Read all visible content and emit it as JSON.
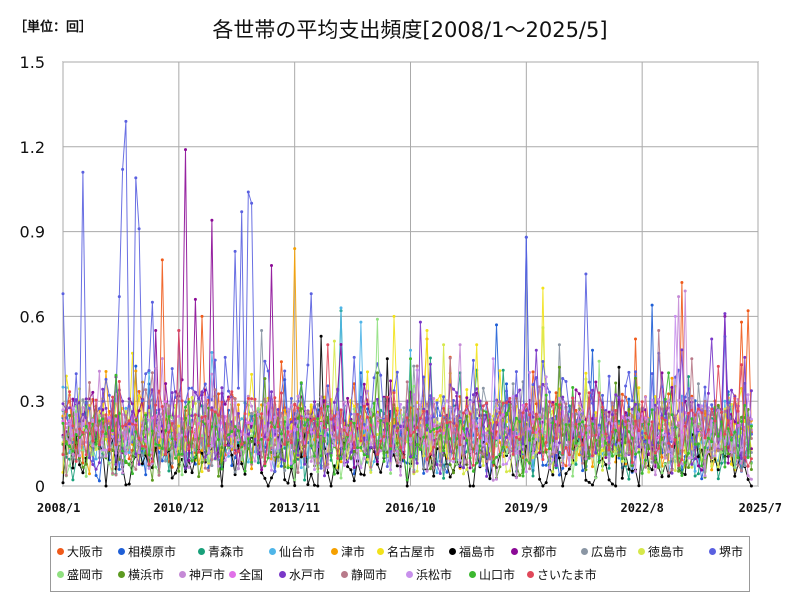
{
  "unit_label": "［単位：回］",
  "chart_data": {
    "type": "line",
    "title": "各世帯の平均支出頻度[2008/1～2025/5]",
    "xlabel": "",
    "ylabel": "回",
    "ylim": [
      0,
      1.5
    ],
    "yticks": [
      0,
      0.3,
      0.6,
      0.9,
      1.2,
      1.5
    ],
    "ytick_labels": [
      "0",
      "0.3",
      "0.6",
      "0.9",
      "1.2",
      "1.5"
    ],
    "x_start": "2008/1",
    "x_end": "2025/7",
    "xticks": [
      "2008/1",
      "2010/12",
      "2013/11",
      "2016/10",
      "2019/9",
      "2022/8",
      "2025/7"
    ],
    "grid": true,
    "legend_position": "bottom",
    "series": [
      {
        "name": "大阪市",
        "color": "#f05a1a",
        "base": 0.2,
        "amp": 0.1,
        "spikes": [
          [
            30,
            0.8
          ],
          [
            42,
            0.6
          ],
          [
            205,
            0.58
          ],
          [
            173,
            0.52
          ],
          [
            187,
            0.72
          ],
          [
            207,
            0.62
          ]
        ]
      },
      {
        "name": "相模原市",
        "color": "#1f5fd6",
        "base": 0.15,
        "amp": 0.1,
        "spikes": [
          [
            131,
            0.57
          ],
          [
            140,
            0.88
          ],
          [
            178,
            0.64
          ],
          [
            160,
            0.48
          ]
        ]
      },
      {
        "name": "青森市",
        "color": "#18a07a",
        "base": 0.16,
        "amp": 0.1,
        "spikes": [
          [
            84,
            0.62
          ],
          [
            120,
            0.4
          ]
        ]
      },
      {
        "name": "仙台市",
        "color": "#4fb5e8",
        "base": 0.18,
        "amp": 0.1,
        "spikes": [
          [
            84,
            0.63
          ],
          [
            90,
            0.58
          ],
          [
            105,
            0.48
          ]
        ]
      },
      {
        "name": "津市",
        "color": "#f5a000",
        "base": 0.18,
        "amp": 0.1,
        "spikes": [
          [
            70,
            0.84
          ],
          [
            110,
            0.52
          ]
        ]
      },
      {
        "name": "名古屋市",
        "color": "#f2e21a",
        "base": 0.2,
        "amp": 0.12,
        "spikes": [
          [
            110,
            0.55
          ],
          [
            125,
            0.5
          ],
          [
            145,
            0.7
          ],
          [
            100,
            0.6
          ]
        ]
      },
      {
        "name": "福島市",
        "color": "#000000",
        "base": 0.08,
        "amp": 0.08,
        "spikes": [
          [
            78,
            0.53
          ],
          [
            98,
            0.45
          ],
          [
            168,
            0.42
          ]
        ]
      },
      {
        "name": "京都市",
        "color": "#8b0a96",
        "base": 0.22,
        "amp": 0.12,
        "spikes": [
          [
            28,
            0.55
          ],
          [
            37,
            1.19
          ],
          [
            45,
            0.94
          ],
          [
            40,
            0.66
          ],
          [
            63,
            0.78
          ],
          [
            200,
            0.6
          ]
        ]
      },
      {
        "name": "広島市",
        "color": "#8a96a4",
        "base": 0.18,
        "amp": 0.1,
        "spikes": [
          [
            60,
            0.55
          ],
          [
            150,
            0.5
          ]
        ]
      },
      {
        "name": "徳島市",
        "color": "#d6e84a",
        "base": 0.17,
        "amp": 0.1,
        "spikes": [
          [
            115,
            0.5
          ],
          [
            145,
            0.56
          ]
        ]
      },
      {
        "name": "堺市",
        "color": "#5a60e0",
        "base": 0.25,
        "amp": 0.15,
        "spikes": [
          [
            0,
            0.68
          ],
          [
            6,
            1.11
          ],
          [
            17,
            0.67
          ],
          [
            18,
            1.12
          ],
          [
            19,
            1.29
          ],
          [
            22,
            1.09
          ],
          [
            23,
            0.91
          ],
          [
            27,
            0.65
          ],
          [
            52,
            0.83
          ],
          [
            54,
            0.97
          ],
          [
            56,
            1.04
          ],
          [
            57,
            1.0
          ],
          [
            140,
            0.88
          ],
          [
            158,
            0.75
          ]
        ]
      },
      {
        "name": "盛岡市",
        "color": "#90e080",
        "base": 0.16,
        "amp": 0.1,
        "spikes": [
          [
            95,
            0.59
          ]
        ]
      },
      {
        "name": "横浜市",
        "color": "#5c9a20",
        "base": 0.16,
        "amp": 0.1,
        "spikes": [
          [
            95,
            0.4
          ],
          [
            150,
            0.42
          ]
        ]
      },
      {
        "name": "神戸市",
        "color": "#c58ad6",
        "base": 0.18,
        "amp": 0.12,
        "spikes": [
          [
            120,
            0.5
          ],
          [
            186,
            0.67
          ],
          [
            188,
            0.69
          ]
        ]
      },
      {
        "name": "全国",
        "color": "#e070e8",
        "base": 0.2,
        "amp": 0.04,
        "spikes": []
      },
      {
        "name": "水戸市",
        "color": "#7a38c8",
        "base": 0.2,
        "amp": 0.12,
        "spikes": [
          [
            108,
            0.58
          ],
          [
            200,
            0.61
          ],
          [
            196,
            0.52
          ]
        ]
      },
      {
        "name": "静岡市",
        "color": "#b87a8a",
        "base": 0.17,
        "amp": 0.1,
        "spikes": [
          [
            180,
            0.55
          ],
          [
            190,
            0.45
          ]
        ]
      },
      {
        "name": "浜松市",
        "color": "#c890ec",
        "base": 0.18,
        "amp": 0.1,
        "spikes": [
          [
            130,
            0.45
          ],
          [
            185,
            0.6
          ]
        ]
      },
      {
        "name": "山口市",
        "color": "#3cb830",
        "base": 0.16,
        "amp": 0.1,
        "spikes": [
          [
            105,
            0.45
          ]
        ]
      },
      {
        "name": "さいたま市",
        "color": "#e0485a",
        "base": 0.2,
        "amp": 0.1,
        "spikes": [
          [
            35,
            0.55
          ],
          [
            80,
            0.5
          ]
        ]
      }
    ]
  }
}
